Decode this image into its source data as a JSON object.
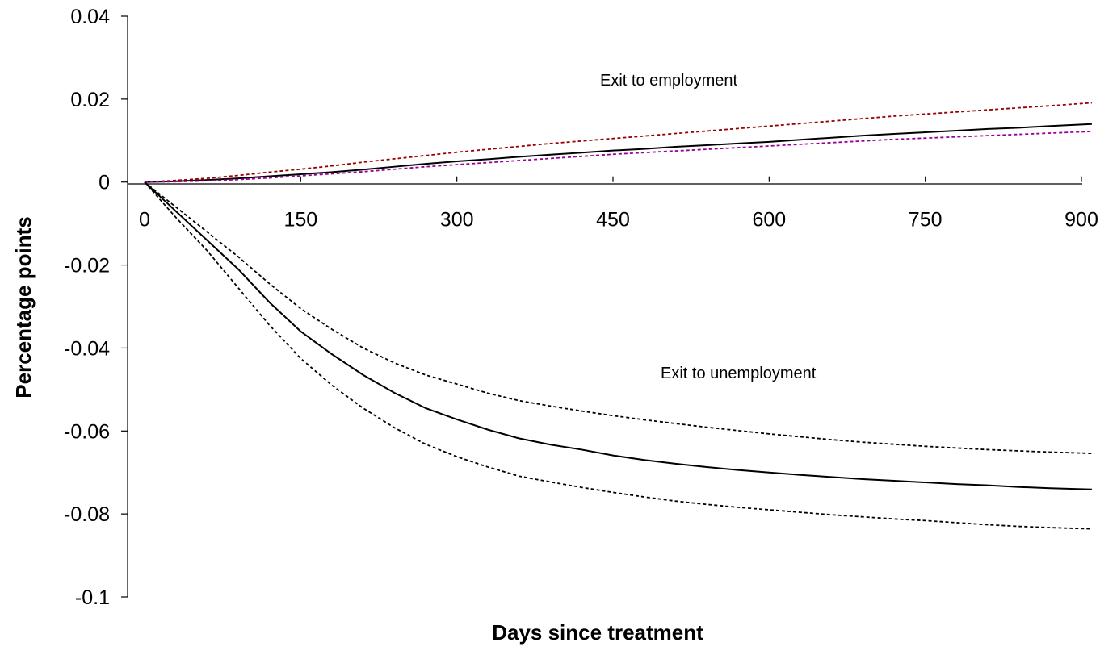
{
  "chart_data": {
    "type": "line",
    "title": "",
    "xlabel": "Days since treatment",
    "ylabel": "Percentage points",
    "xlim": [
      0,
      900
    ],
    "ylim": [
      -0.1,
      0.04
    ],
    "x_ticks": [
      0,
      150,
      300,
      450,
      600,
      750,
      900
    ],
    "y_ticks": [
      0.04,
      0.02,
      0,
      -0.02,
      -0.04,
      -0.06,
      -0.08,
      -0.1
    ],
    "grid": false,
    "legend": "none",
    "annotations": [
      "Exit to employment",
      "Exit to unemployment"
    ],
    "series": [
      {
        "group": "Exit to employment",
        "role": "estimate",
        "style": "solid",
        "color": "#000000",
        "x": [
          0,
          30,
          60,
          90,
          120,
          150,
          180,
          210,
          240,
          270,
          300,
          330,
          360,
          390,
          420,
          450,
          480,
          510,
          540,
          570,
          600,
          630,
          660,
          690,
          720,
          750,
          780,
          810,
          840,
          870,
          910
        ],
        "y": [
          0,
          0.0002,
          0.0005,
          0.0009,
          0.0014,
          0.0019,
          0.0024,
          0.003,
          0.0037,
          0.0044,
          0.005,
          0.0055,
          0.0061,
          0.0066,
          0.0071,
          0.0076,
          0.008,
          0.0085,
          0.0089,
          0.0093,
          0.0097,
          0.0102,
          0.0107,
          0.0112,
          0.0116,
          0.012,
          0.0124,
          0.0128,
          0.0131,
          0.0135,
          0.014
        ]
      },
      {
        "group": "Exit to employment",
        "role": "upper bound",
        "style": "dashed",
        "color": "#990000",
        "x": [
          0,
          30,
          60,
          90,
          120,
          150,
          180,
          210,
          240,
          270,
          300,
          330,
          360,
          390,
          420,
          450,
          480,
          510,
          540,
          570,
          600,
          630,
          660,
          690,
          720,
          750,
          780,
          810,
          840,
          870,
          910
        ],
        "y": [
          0,
          0.0004,
          0.0009,
          0.0016,
          0.0024,
          0.0031,
          0.0039,
          0.0048,
          0.0056,
          0.0064,
          0.0072,
          0.0079,
          0.0086,
          0.0093,
          0.0099,
          0.0105,
          0.0111,
          0.0117,
          0.0123,
          0.0129,
          0.0135,
          0.0141,
          0.0147,
          0.0153,
          0.0159,
          0.0164,
          0.0169,
          0.0174,
          0.0179,
          0.0184,
          0.0191
        ]
      },
      {
        "group": "Exit to employment",
        "role": "lower bound",
        "style": "dashed",
        "color": "#990099",
        "x": [
          0,
          30,
          60,
          90,
          120,
          150,
          180,
          210,
          240,
          270,
          300,
          330,
          360,
          390,
          420,
          450,
          480,
          510,
          540,
          570,
          600,
          630,
          660,
          690,
          720,
          750,
          780,
          810,
          840,
          870,
          910
        ],
        "y": [
          0,
          0.0001,
          0.0003,
          0.0006,
          0.001,
          0.0015,
          0.002,
          0.0025,
          0.0031,
          0.0037,
          0.0042,
          0.0047,
          0.0052,
          0.0057,
          0.0062,
          0.0067,
          0.0071,
          0.0075,
          0.0079,
          0.0083,
          0.0087,
          0.0091,
          0.0095,
          0.0099,
          0.0103,
          0.0106,
          0.0109,
          0.0112,
          0.0115,
          0.0118,
          0.0122
        ]
      },
      {
        "group": "Exit to unemployment",
        "role": "estimate",
        "style": "solid",
        "color": "#000000",
        "x": [
          0,
          30,
          60,
          90,
          120,
          150,
          180,
          210,
          240,
          270,
          300,
          330,
          360,
          390,
          420,
          450,
          480,
          510,
          540,
          570,
          600,
          630,
          660,
          690,
          720,
          750,
          780,
          810,
          840,
          870,
          910
        ],
        "y": [
          0,
          -0.007,
          -0.014,
          -0.021,
          -0.029,
          -0.036,
          -0.0415,
          -0.0465,
          -0.0508,
          -0.0545,
          -0.0572,
          -0.0597,
          -0.0618,
          -0.0633,
          -0.0645,
          -0.0659,
          -0.067,
          -0.0679,
          -0.0687,
          -0.0694,
          -0.07,
          -0.0706,
          -0.0711,
          -0.0716,
          -0.072,
          -0.0724,
          -0.0728,
          -0.0731,
          -0.0735,
          -0.0738,
          -0.0741
        ]
      },
      {
        "group": "Exit to unemployment",
        "role": "upper bound",
        "style": "dashed",
        "color": "#000000",
        "x": [
          0,
          30,
          60,
          90,
          120,
          150,
          180,
          210,
          240,
          270,
          300,
          330,
          360,
          390,
          420,
          450,
          480,
          510,
          540,
          570,
          600,
          630,
          660,
          690,
          720,
          750,
          780,
          810,
          840,
          870,
          910
        ],
        "y": [
          0,
          -0.006,
          -0.012,
          -0.018,
          -0.0245,
          -0.0305,
          -0.0355,
          -0.04,
          -0.0436,
          -0.0465,
          -0.0487,
          -0.0509,
          -0.0527,
          -0.054,
          -0.0552,
          -0.0563,
          -0.0573,
          -0.0582,
          -0.0591,
          -0.0599,
          -0.0607,
          -0.0614,
          -0.0621,
          -0.0627,
          -0.0632,
          -0.0637,
          -0.0641,
          -0.0645,
          -0.0648,
          -0.0651,
          -0.0654
        ]
      },
      {
        "group": "Exit to unemployment",
        "role": "lower bound",
        "style": "dashed",
        "color": "#000000",
        "x": [
          0,
          30,
          60,
          90,
          120,
          150,
          180,
          210,
          240,
          270,
          300,
          330,
          360,
          390,
          420,
          450,
          480,
          510,
          540,
          570,
          600,
          630,
          660,
          690,
          720,
          750,
          780,
          810,
          840,
          870,
          910
        ],
        "y": [
          0,
          -0.0085,
          -0.0165,
          -0.0255,
          -0.0345,
          -0.0425,
          -0.049,
          -0.0545,
          -0.0592,
          -0.0632,
          -0.0662,
          -0.0687,
          -0.0709,
          -0.0723,
          -0.0736,
          -0.0748,
          -0.0759,
          -0.0769,
          -0.0777,
          -0.0784,
          -0.079,
          -0.0796,
          -0.0802,
          -0.0807,
          -0.0812,
          -0.0816,
          -0.0821,
          -0.0826,
          -0.083,
          -0.0833,
          -0.0836
        ]
      }
    ]
  }
}
